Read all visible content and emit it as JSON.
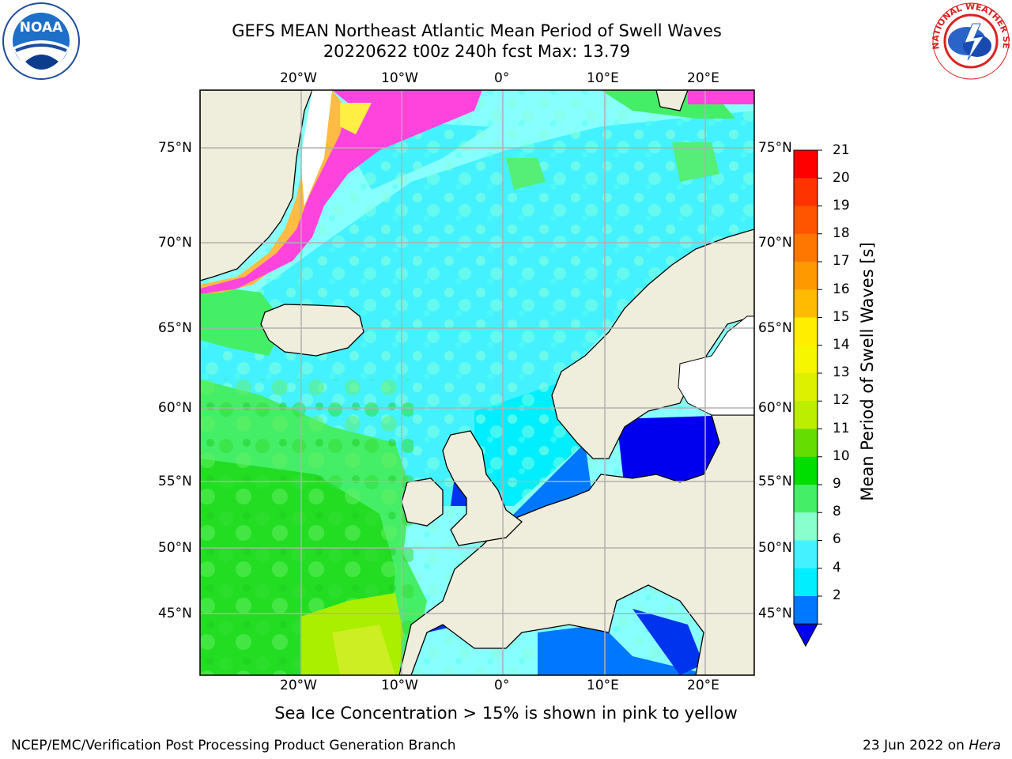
{
  "title_line1": "GEFS MEAN Northeast Atlantic Mean Period of Swell Waves",
  "title_line2": "20220622 t00z 240h fcst   Max: 13.79",
  "logos": {
    "left": "noaa-logo",
    "left_text": "NOAA",
    "right": "national-weather-service-logo",
    "right_text": "NATIONAL WEATHER SERVICE"
  },
  "map": {
    "lon_ticks": [
      "20°W",
      "10°W",
      "0°",
      "10°E",
      "20°E"
    ],
    "lat_ticks": [
      "75°N",
      "70°N",
      "65°N",
      "60°N",
      "55°N",
      "50°N",
      "45°N"
    ],
    "colors": {
      "land": "#efeddc",
      "ice_pink": "#ff44dd",
      "grid": "#b0b0b0"
    }
  },
  "colorbar": {
    "label": "Mean Period of Swell Waves [s]",
    "ticks": [
      "21",
      "20",
      "19",
      "18",
      "17",
      "16",
      "15",
      "14",
      "13",
      "12",
      "11",
      "10",
      "9",
      "8",
      "6",
      "4",
      "2"
    ],
    "colors": [
      "#ff0000",
      "#ff3300",
      "#ff5500",
      "#ff7700",
      "#ff9900",
      "#ffbb00",
      "#ffee00",
      "#f6f600",
      "#ddf000",
      "#bbee00",
      "#66dd00",
      "#00dd00",
      "#44ee66",
      "#88ffcc",
      "#44f2ff",
      "#00eeff",
      "#0077ff"
    ],
    "extend_color": "#0000ee"
  },
  "subtitle": "Sea Ice Concentration > 15% is shown in pink to yellow",
  "footer_left": "NCEP/EMC/Verification Post Processing Product Generation Branch",
  "footer_date": "23 Jun 2022 on",
  "footer_machine": "Hera"
}
